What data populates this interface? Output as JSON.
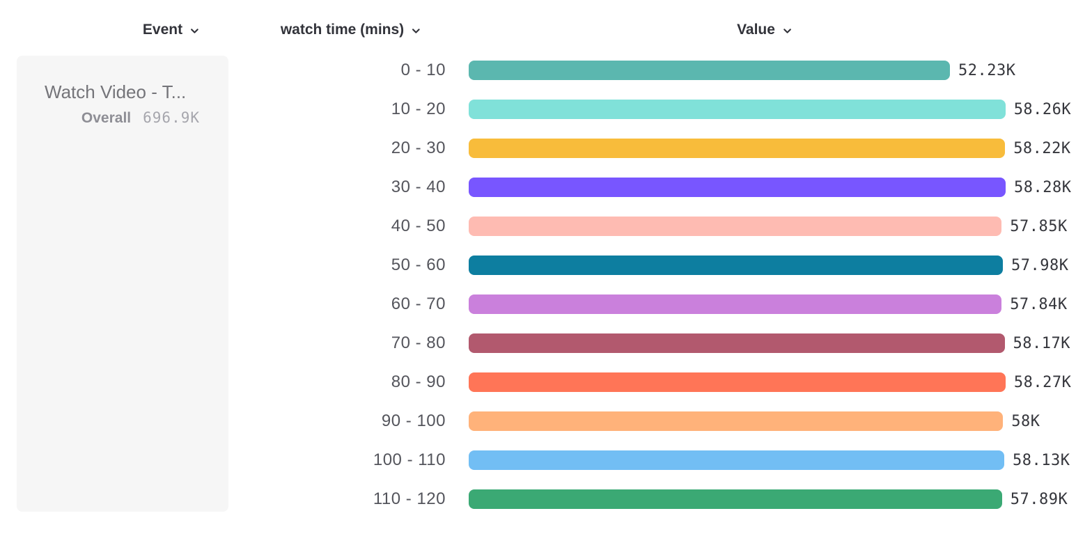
{
  "header": {
    "columns": [
      {
        "label": "Event"
      },
      {
        "label": "watch time (mins)"
      },
      {
        "label": "Value"
      }
    ]
  },
  "event_card": {
    "title": "Watch Video - T...",
    "overall_label": "Overall",
    "overall_value": "696.9K"
  },
  "colors": {
    "header_text": "#32333A",
    "row_label_text": "#54555C",
    "value_text": "#35363C",
    "card_background": "#F6F6F6",
    "card_title_text": "#747479",
    "overall_label_text": "#8E8E95",
    "overall_value_text": "#A6A6AD"
  },
  "chart_data": {
    "type": "bar",
    "orientation": "horizontal",
    "title": "",
    "xlabel": "watch time (mins)",
    "ylabel": "Value",
    "grid": false,
    "legend": false,
    "axis_range": [
      0,
      58280
    ],
    "categories": [
      "0 - 10",
      "10 - 20",
      "20 - 30",
      "30 - 40",
      "40 - 50",
      "50 - 60",
      "60 - 70",
      "70 - 80",
      "80 - 90",
      "90 - 100",
      "100 - 110",
      "110 - 120"
    ],
    "values": [
      52230,
      58260,
      58220,
      58280,
      57850,
      57980,
      57840,
      58170,
      58270,
      58000,
      58130,
      57890
    ],
    "value_labels": [
      "52.23K",
      "58.26K",
      "58.22K",
      "58.28K",
      "57.85K",
      "57.98K",
      "57.84K",
      "58.17K",
      "58.27K",
      "58K",
      "58.13K",
      "57.89K"
    ],
    "bar_colors": [
      "#5BB7AF",
      "#80E1D9",
      "#F8BC3B",
      "#7856FF",
      "#FEBBB2",
      "#0D7EA0",
      "#CA80DC",
      "#B2596E",
      "#FF7557",
      "#FFB27A",
      "#72BEF4",
      "#3BA974"
    ]
  }
}
